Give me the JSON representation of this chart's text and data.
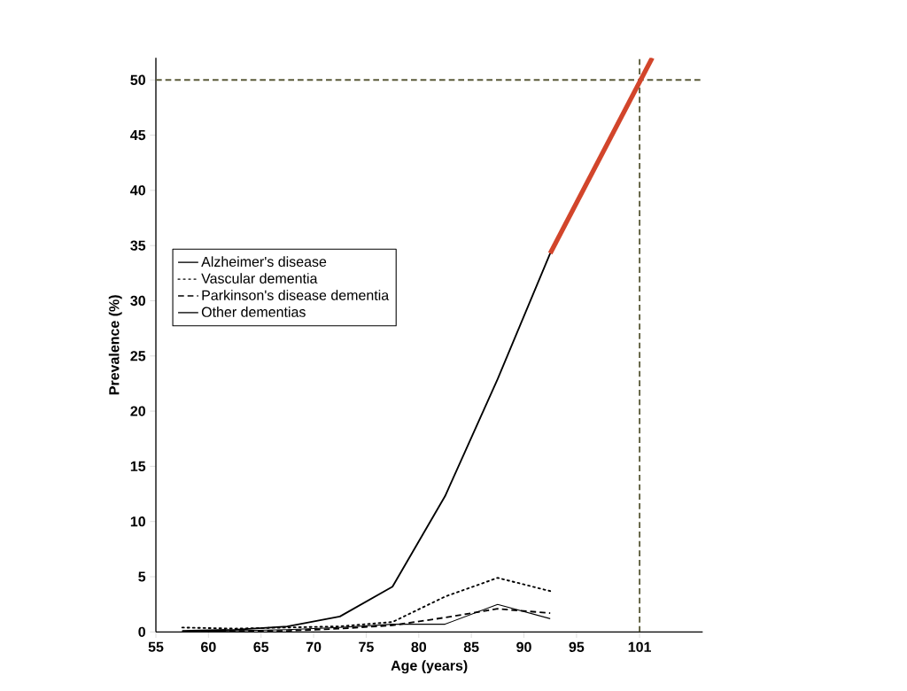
{
  "chart_data": {
    "type": "line",
    "xlabel": "Age (years)",
    "ylabel": "Prevalence (%)",
    "x": [
      57.5,
      62.5,
      67.5,
      72.5,
      77.5,
      82.5,
      87.5,
      92.5
    ],
    "series": [
      {
        "name": "Alzheimer's disease",
        "color": "#000000",
        "line_style": "solid",
        "values": [
          0.1,
          0.2,
          0.5,
          1.4,
          4.1,
          12.3,
          22.9,
          34.3
        ]
      },
      {
        "name": "Vascular dementia",
        "color": "#000000",
        "line_style": "dotted",
        "values": [
          0.4,
          0.3,
          0.4,
          0.5,
          0.9,
          3.2,
          4.9,
          3.7
        ]
      },
      {
        "name": "Parkinson's disease dementia",
        "color": "#000000",
        "line_style": "dashed",
        "values": [
          0.0,
          0.1,
          0.1,
          0.3,
          0.6,
          1.3,
          2.1,
          1.7
        ]
      },
      {
        "name": "Other dementias",
        "color": "#000000",
        "line_style": "solid",
        "values": [
          0.0,
          0.1,
          0.2,
          0.4,
          0.7,
          0.7,
          2.5,
          1.2
        ]
      },
      {
        "color": "#d2452b",
        "line_style": "solid",
        "x": [
          92.5,
          102.2
        ],
        "values": [
          34.3,
          52.0
        ]
      }
    ],
    "xlim": [
      55,
      107
    ],
    "ylim": [
      0,
      52
    ],
    "xticks": [
      55,
      60,
      65,
      70,
      75,
      80,
      85,
      90,
      95,
      101
    ],
    "yticks": [
      0,
      5,
      10,
      15,
      20,
      25,
      30,
      35,
      40,
      45,
      50
    ],
    "ref_lines": [
      {
        "axis": "y",
        "value": 50,
        "color": "#5b5b3a",
        "line_style": "dashed"
      },
      {
        "axis": "x",
        "value": 101,
        "color": "#5b5b3a",
        "line_style": "dashed"
      }
    ],
    "legend": "left",
    "grid": false,
    "marker": "none"
  }
}
